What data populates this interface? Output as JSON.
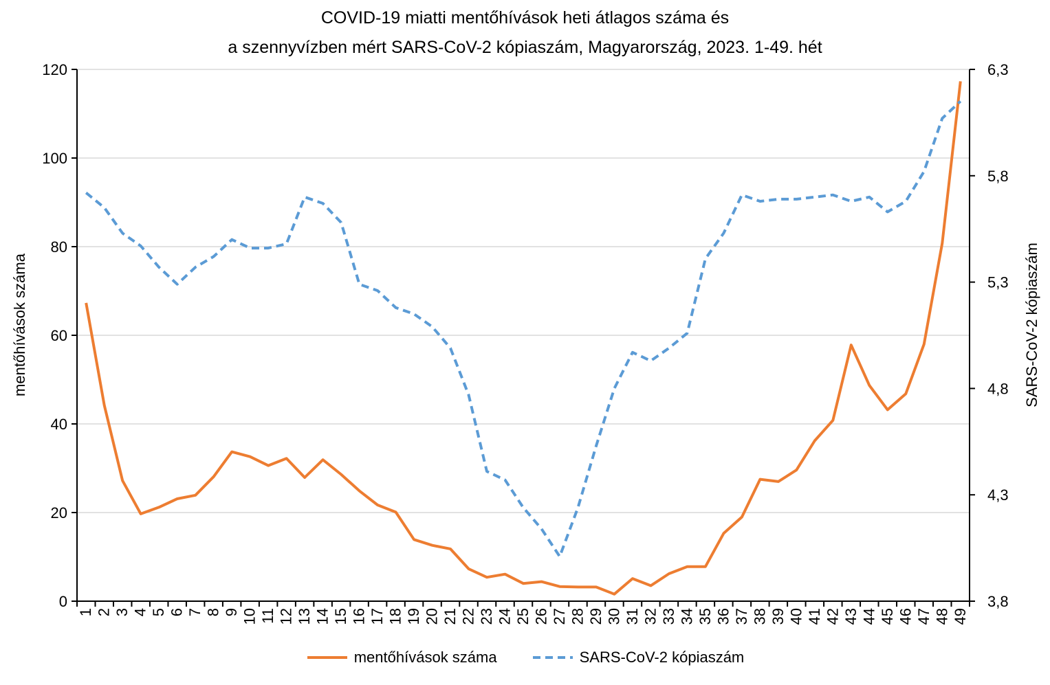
{
  "chart_data": {
    "type": "line",
    "title": [
      "COVID-19 miatti mentőhívások heti átlagos száma és",
      "a szennyvízben mért SARS-CoV-2 kópiaszám, Magyarország, 2023. 1-49. hét"
    ],
    "ylabel_left": "mentőhívások száma",
    "ylabel_right": "SARS-CoV-2 kópiaszám",
    "ylim_left": [
      0,
      120
    ],
    "yticks_left": [
      0,
      20,
      40,
      60,
      80,
      100,
      120
    ],
    "ylim_right": [
      3.8,
      6.3
    ],
    "yticks_right": [
      "3,8",
      "4,3",
      "4,8",
      "5,3",
      "5,8",
      "6,3"
    ],
    "yticks_right_values": [
      3.8,
      4.3,
      4.8,
      5.3,
      5.8,
      6.3
    ],
    "x": [
      "1",
      "2",
      "3",
      "4",
      "5",
      "6",
      "7",
      "8",
      "9",
      "10",
      "11",
      "12",
      "13",
      "14",
      "15",
      "16",
      "17",
      "18",
      "19",
      "20",
      "21",
      "22",
      "23",
      "24",
      "25",
      "26",
      "27",
      "28",
      "29",
      "30",
      "31",
      "32",
      "33",
      "34",
      "35",
      "36",
      "37",
      "38",
      "39",
      "40",
      "41",
      "42",
      "43",
      "44",
      "45",
      "46",
      "47",
      "48",
      "49"
    ],
    "series": [
      {
        "name": "mentőhívások száma",
        "axis": "left",
        "color": "#ED7D31",
        "style": "solid",
        "values": [
          67.3,
          44.2,
          27.2,
          19.7,
          21.2,
          23.1,
          23.9,
          28.1,
          33.7,
          32.6,
          30.6,
          32.2,
          27.9,
          31.9,
          28.6,
          24.9,
          21.7,
          20.1,
          13.9,
          12.6,
          11.8,
          7.3,
          5.4,
          6.1,
          4.0,
          4.4,
          3.3,
          3.2,
          3.2,
          1.6,
          5.1,
          3.5,
          6.2,
          7.8,
          7.8,
          15.3,
          19.0,
          27.5,
          27.0,
          29.6,
          36.2,
          40.8,
          57.8,
          48.7,
          43.2,
          46.8,
          58.0,
          80.8,
          117.3
        ]
      },
      {
        "name": "SARS-CoV-2 kópiaszám",
        "axis": "right",
        "color": "#5B9BD5",
        "style": "dashed",
        "values": [
          5.72,
          5.65,
          5.53,
          5.47,
          5.37,
          5.29,
          5.37,
          5.42,
          5.5,
          5.46,
          5.46,
          5.48,
          5.7,
          5.67,
          5.58,
          5.29,
          5.26,
          5.18,
          5.15,
          5.09,
          4.99,
          4.77,
          4.41,
          4.37,
          4.24,
          4.14,
          4.01,
          4.24,
          4.53,
          4.8,
          4.97,
          4.93,
          4.99,
          5.06,
          5.41,
          5.53,
          5.71,
          5.68,
          5.69,
          5.69,
          5.7,
          5.71,
          5.68,
          5.7,
          5.63,
          5.68,
          5.82,
          6.07,
          6.15
        ]
      }
    ],
    "legend": [
      "mentőhívások száma",
      "SARS-CoV-2 kópiaszám"
    ],
    "legend_position": "bottom",
    "grid": true
  }
}
